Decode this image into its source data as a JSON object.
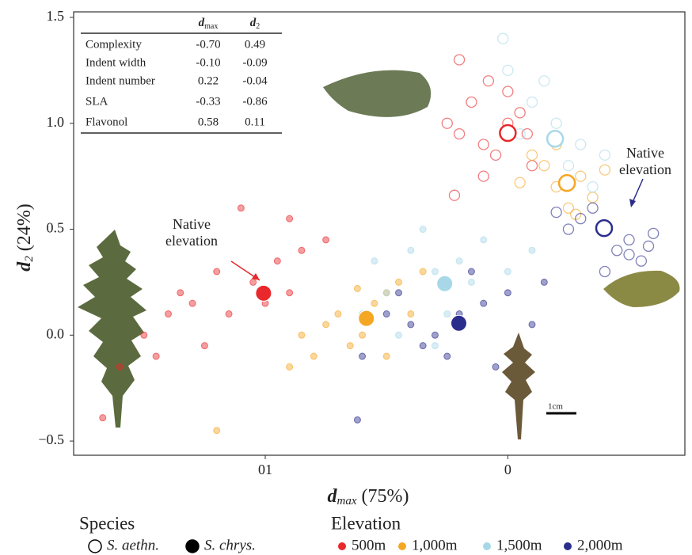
{
  "chart_data": {
    "type": "scatter",
    "x_label": {
      "symbol": "d",
      "sub": "max",
      "text": "(75%)"
    },
    "y_label": {
      "symbol": "d",
      "sub": "2",
      "text": "(24%)"
    },
    "xlim": [
      0.179,
      -0.073
    ],
    "ylim": [
      -0.567,
      1.526
    ],
    "xticks": [
      {
        "value": 0.1,
        "label": "01"
      },
      0
    ],
    "yticks": [
      {
        "value": -0.5,
        "label": "−0.5"
      },
      {
        "value": 0,
        "label": "0.0"
      },
      0.5,
      {
        "value": 1,
        "label": "1.0"
      },
      1.5
    ],
    "species_title": "Species",
    "elevation_title": "Elevation",
    "elevations": [
      {
        "name": "500m",
        "color": "#e8282b"
      },
      {
        "name": "1,000m",
        "color": "#f5a623"
      },
      {
        "name": "1,500m",
        "color": "#a8d8e8"
      },
      {
        "name": "2,000m",
        "color": "#2b2d8c"
      }
    ],
    "series": [
      {
        "name": "S. chrys.",
        "marker": "filled",
        "groups": [
          {
            "x": [
              0.09,
              0.095,
              0.11,
              0.12,
              0.105,
              0.13,
              0.14,
              0.15,
              0.125,
              0.16,
              0.085,
              0.075,
              0.1,
              0.115,
              0.167,
              0.135,
              0.145,
              0.09
            ],
            "y": [
              0.55,
              0.35,
              0.6,
              0.3,
              0.25,
              0.15,
              0.1,
              0.0,
              -0.05,
              -0.15,
              0.4,
              0.45,
              0.15,
              0.1,
              -0.39,
              0.2,
              -0.1,
              0.2
            ],
            "centroid": {
              "x": 0.1007,
              "y": 0.198
            }
          },
          {
            "x": [
              0.07,
              0.06,
              0.05,
              0.045,
              0.065,
              0.075,
              0.08,
              0.055,
              0.04,
              0.085,
              0.09,
              0.035,
              0.12,
              0.05,
              0.062
            ],
            "y": [
              0.1,
              0.0,
              0.2,
              0.25,
              -0.05,
              0.05,
              -0.1,
              0.15,
              0.1,
              0.0,
              -0.15,
              0.3,
              -0.45,
              -0.1,
              0.22
            ],
            "centroid": {
              "x": 0.0583,
              "y": 0.079
            }
          },
          {
            "x": [
              0.03,
              0.04,
              0.02,
              0.05,
              0.01,
              0.025,
              0.035,
              0.015,
              0.045,
              0.0,
              0.055,
              0.03,
              -0.01,
              0.06
            ],
            "y": [
              0.3,
              0.4,
              0.35,
              0.2,
              0.45,
              0.1,
              0.5,
              0.25,
              0.0,
              0.3,
              0.35,
              -0.05,
              0.4,
              0.1
            ],
            "centroid": {
              "x": 0.026,
              "y": 0.243
            }
          },
          {
            "x": [
              0.02,
              0.03,
              0.01,
              0.04,
              0.0,
              0.025,
              0.05,
              -0.01,
              0.015,
              0.035,
              0.045,
              0.005,
              -0.015,
              0.06,
              0.062
            ],
            "y": [
              0.1,
              0.0,
              0.15,
              0.05,
              0.2,
              -0.1,
              0.1,
              0.05,
              0.3,
              -0.05,
              0.2,
              -0.15,
              0.25,
              -0.1,
              -0.4
            ],
            "centroid": {
              "x": 0.0202,
              "y": 0.056
            }
          }
        ]
      },
      {
        "name": "S. aethn.",
        "marker": "open",
        "groups": [
          {
            "x": [
              0.0,
              0.01,
              -0.005,
              0.015,
              0.005,
              0.02,
              -0.01,
              0.02,
              0.01,
              0.025,
              0.0,
              0.022,
              0.008,
              -0.008
            ],
            "y": [
              1.0,
              0.9,
              1.05,
              1.1,
              0.85,
              0.95,
              0.8,
              1.3,
              0.75,
              1.0,
              1.15,
              0.66,
              1.2,
              0.95
            ],
            "centroid": {
              "x": 0,
              "y": 0.954
            }
          },
          {
            "x": [
              -0.02,
              -0.03,
              -0.015,
              -0.025,
              -0.01,
              -0.035,
              -0.02,
              -0.005,
              -0.04,
              -0.028
            ],
            "y": [
              0.7,
              0.75,
              0.8,
              0.6,
              0.85,
              0.65,
              0.9,
              0.72,
              0.78,
              0.57
            ],
            "centroid": {
              "x": -0.0244,
              "y": 0.718
            }
          },
          {
            "x": [
              -0.02,
              -0.01,
              -0.03,
              0.0,
              -0.025,
              -0.015,
              0.002,
              -0.035,
              -0.005,
              -0.04
            ],
            "y": [
              1.0,
              1.1,
              0.9,
              1.25,
              0.8,
              1.2,
              1.4,
              0.7,
              0.95,
              0.85
            ],
            "centroid": {
              "x": -0.0195,
              "y": 0.927
            }
          },
          {
            "x": [
              -0.04,
              -0.05,
              -0.03,
              -0.045,
              -0.035,
              -0.055,
              -0.025,
              -0.06,
              -0.02,
              -0.05,
              -0.04,
              -0.058
            ],
            "y": [
              0.5,
              0.45,
              0.55,
              0.4,
              0.6,
              0.35,
              0.5,
              0.48,
              0.58,
              0.38,
              0.3,
              0.42
            ],
            "centroid": {
              "x": -0.0397,
              "y": 0.505
            }
          }
        ]
      }
    ],
    "annotations": [
      {
        "lines": [
          "Native",
          "elevation"
        ],
        "color": "#e8282b"
      },
      {
        "lines": [
          "Native",
          "elevation"
        ],
        "color": "#2b2d8c"
      }
    ],
    "scale_bar_label": "1cm",
    "inset_table": {
      "columns": [
        {
          "symbol": "d",
          "sub": "max"
        },
        {
          "symbol": "d",
          "sub": "2"
        }
      ],
      "rows": [
        {
          "label": "Complexity",
          "values": [
            "-0.70",
            "0.49"
          ]
        },
        {
          "label": "Indent width",
          "values": [
            "-0.10",
            "-0.09"
          ]
        },
        {
          "label": "Indent number",
          "values": [
            "0.22",
            "-0.04"
          ]
        },
        {
          "label": "SLA",
          "values": [
            "-0.33",
            "-0.86"
          ]
        },
        {
          "label": "Flavonol",
          "values": [
            "0.58",
            "0.11"
          ]
        }
      ]
    }
  }
}
